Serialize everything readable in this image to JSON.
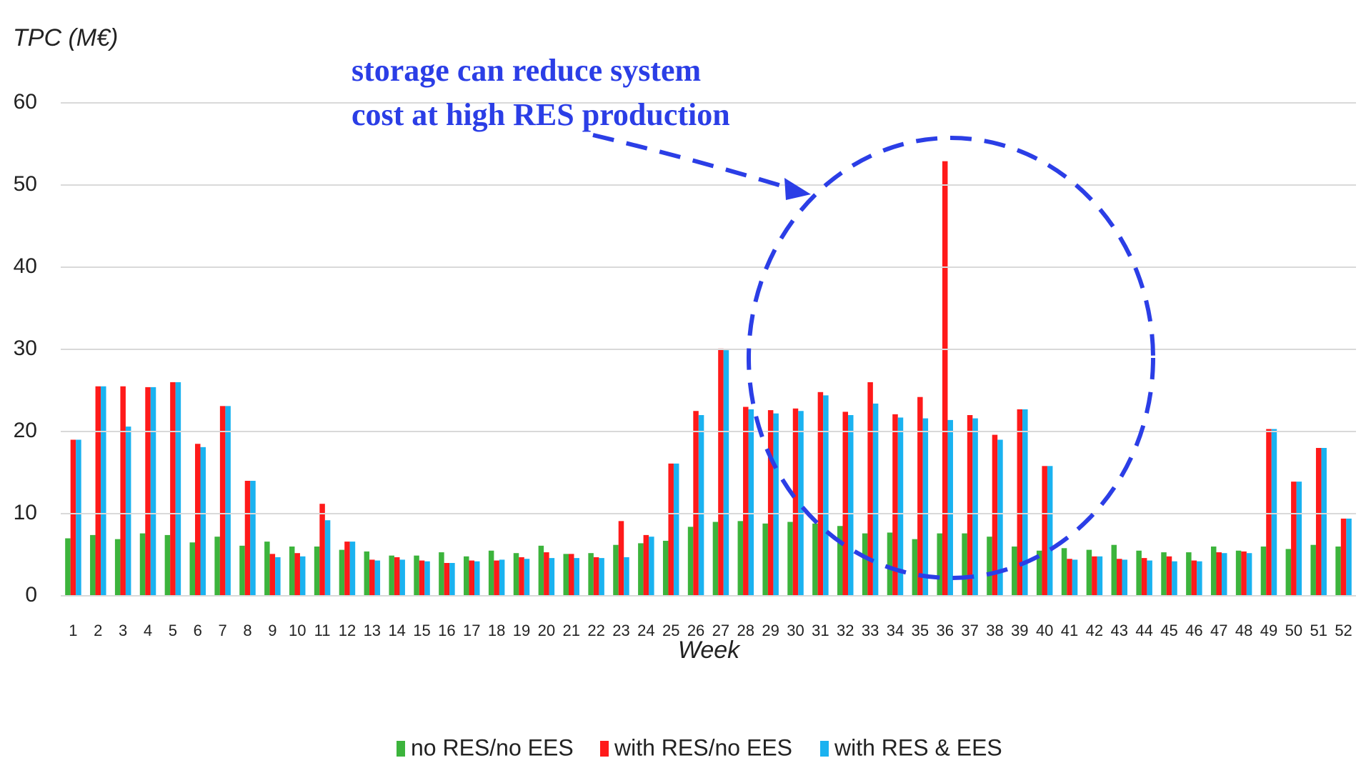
{
  "chart_data": {
    "type": "bar",
    "title": "TPC (M€)",
    "x_label": "Week",
    "annotation": [
      "storage can reduce system",
      "cost at high RES production"
    ],
    "categories": [
      "1",
      "2",
      "3",
      "4",
      "5",
      "6",
      "7",
      "8",
      "9",
      "10",
      "11",
      "12",
      "13",
      "14",
      "15",
      "16",
      "17",
      "18",
      "19",
      "20",
      "21",
      "22",
      "23",
      "24",
      "25",
      "26",
      "27",
      "28",
      "29",
      "30",
      "31",
      "32",
      "33",
      "34",
      "35",
      "36",
      "37",
      "38",
      "39",
      "40",
      "41",
      "42",
      "43",
      "44",
      "45",
      "46",
      "47",
      "48",
      "49",
      "50",
      "51",
      "52"
    ],
    "series": [
      {
        "name": "no RES/no EES",
        "color": "#3cb43c",
        "values": [
          7,
          7.4,
          6.9,
          7.6,
          7.4,
          6.5,
          7.2,
          6.1,
          6.6,
          6,
          6,
          5.6,
          5.4,
          4.9,
          4.9,
          5.3,
          4.8,
          5.5,
          5.2,
          6.1,
          5.1,
          5.2,
          6.2,
          6.4,
          6.7,
          8.4,
          9,
          9.1,
          8.8,
          9,
          8.8,
          8.5,
          7.6,
          7.7,
          6.9,
          7.6,
          7.6,
          7.2,
          6,
          5.5,
          5.8,
          5.6,
          6.2,
          5.5,
          5.3,
          5.3,
          6,
          5.5,
          6,
          5.7,
          6.2,
          6
        ]
      },
      {
        "name": "with RES/no EES",
        "color": "#ff1a1a",
        "values": [
          19,
          25.5,
          25.5,
          25.4,
          26,
          18.5,
          23.1,
          14,
          5.1,
          5.2,
          11.2,
          6.6,
          4.4,
          4.7,
          4.3,
          4,
          4.3,
          4.3,
          4.7,
          5.3,
          5.1,
          4.7,
          9.1,
          7.4,
          16.1,
          22.5,
          30.1,
          23,
          22.6,
          22.8,
          24.8,
          22.4,
          26,
          22.1,
          24.2,
          52.9,
          22,
          19.6,
          22.7,
          15.8,
          4.5,
          4.8,
          4.5,
          4.6,
          4.8,
          4.3,
          5.3,
          5.4,
          20.3,
          13.9,
          18,
          9.4
        ]
      },
      {
        "name": "with RES & EES",
        "color": "#1ab2f0",
        "values": [
          19,
          25.5,
          20.6,
          25.4,
          26,
          18.1,
          23.1,
          14,
          4.7,
          4.8,
          9.2,
          6.6,
          4.3,
          4.4,
          4.2,
          4,
          4.2,
          4.4,
          4.5,
          4.6,
          4.6,
          4.6,
          4.7,
          7.2,
          16.1,
          22,
          29.9,
          22.7,
          22.2,
          22.5,
          24.4,
          22,
          23.4,
          21.7,
          21.6,
          21.4,
          21.6,
          19,
          22.7,
          15.8,
          4.4,
          4.8,
          4.4,
          4.3,
          4.2,
          4.2,
          5.2,
          5.2,
          20.3,
          13.9,
          18,
          9.4
        ]
      }
    ],
    "ylim": [
      0,
      60
    ],
    "yticks": [
      0,
      10,
      20,
      30,
      40,
      50,
      60
    ],
    "grid": true
  }
}
